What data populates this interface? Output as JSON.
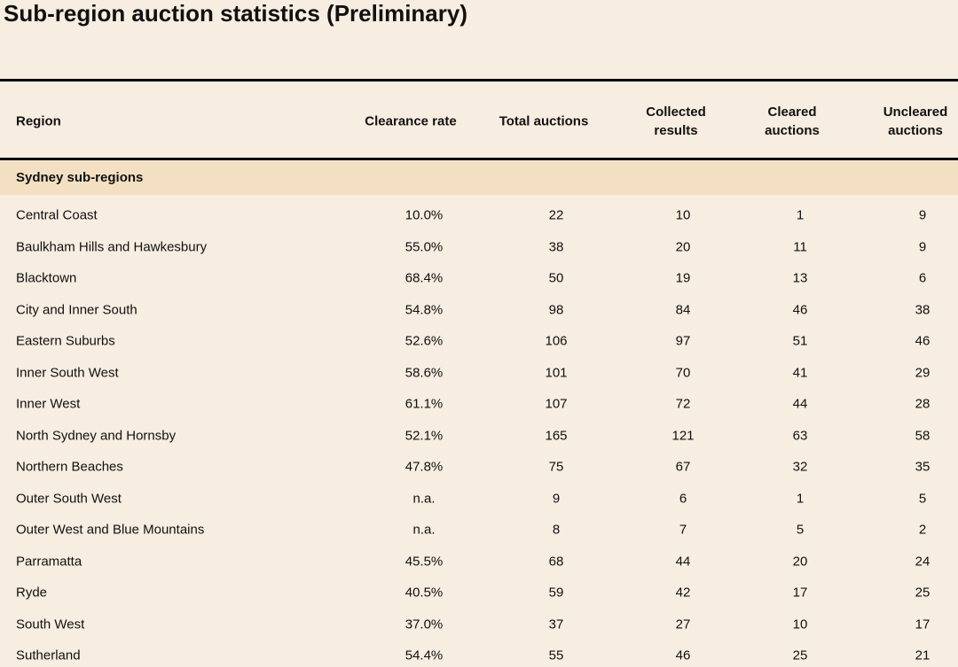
{
  "title": "Sub-region auction statistics (Preliminary)",
  "table": {
    "headers": [
      "Region",
      "Clearance rate",
      "Total auctions",
      "Collected results",
      "Cleared auctions",
      "Uncleared auctions"
    ],
    "section": "Sydney sub-regions",
    "rows": [
      [
        "Central Coast",
        "10.0%",
        "22",
        "10",
        "1",
        "9"
      ],
      [
        "Baulkham Hills and Hawkesbury",
        "55.0%",
        "38",
        "20",
        "11",
        "9"
      ],
      [
        "Blacktown",
        "68.4%",
        "50",
        "19",
        "13",
        "6"
      ],
      [
        "City and Inner South",
        "54.8%",
        "98",
        "84",
        "46",
        "38"
      ],
      [
        "Eastern Suburbs",
        "52.6%",
        "106",
        "97",
        "51",
        "46"
      ],
      [
        "Inner South West",
        "58.6%",
        "101",
        "70",
        "41",
        "29"
      ],
      [
        "Inner West",
        "61.1%",
        "107",
        "72",
        "44",
        "28"
      ],
      [
        "North Sydney and Hornsby",
        "52.1%",
        "165",
        "121",
        "63",
        "58"
      ],
      [
        "Northern Beaches",
        "47.8%",
        "75",
        "67",
        "32",
        "35"
      ],
      [
        "Outer South West",
        "n.a.",
        "9",
        "6",
        "1",
        "5"
      ],
      [
        "Outer West and Blue Mountains",
        "n.a.",
        "8",
        "7",
        "5",
        "2"
      ],
      [
        "Parramatta",
        "45.5%",
        "68",
        "44",
        "20",
        "24"
      ],
      [
        "Ryde",
        "40.5%",
        "59",
        "42",
        "17",
        "25"
      ],
      [
        "South West",
        "37.0%",
        "37",
        "27",
        "10",
        "17"
      ],
      [
        "Sutherland",
        "54.4%",
        "55",
        "46",
        "25",
        "21"
      ]
    ]
  }
}
